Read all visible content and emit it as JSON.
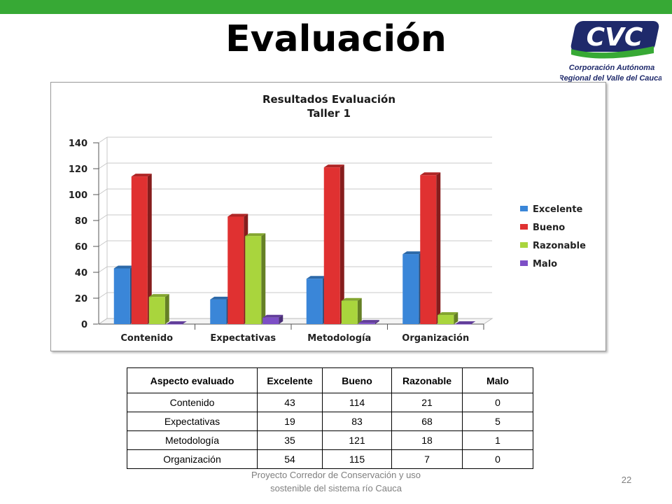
{
  "slide": {
    "title": "Evaluación",
    "footer_line1": "Proyecto Corredor de Conservación y uso",
    "footer_line2": "sostenible del sistema río Cauca",
    "page_number": "22",
    "accent_color": "#37a935"
  },
  "logo": {
    "text": "CVC",
    "subtitle_line1": "Corporación Autónoma",
    "subtitle_line2": "Regional del Valle del Cauca",
    "colors": {
      "navy": "#1f2a6b",
      "green": "#37a935"
    }
  },
  "chart_data": {
    "type": "bar",
    "title": "Resultados Evaluación",
    "subtitle": "Taller 1",
    "categories": [
      "Contenido",
      "Expectativas",
      "Metodología",
      "Organización"
    ],
    "series": [
      {
        "name": "Excelente",
        "values": [
          43,
          19,
          35,
          54
        ],
        "color": "#3a86d8"
      },
      {
        "name": "Bueno",
        "values": [
          114,
          83,
          121,
          115
        ],
        "color": "#e03131"
      },
      {
        "name": "Razonable",
        "values": [
          21,
          68,
          18,
          7
        ],
        "color": "#a9d53d"
      },
      {
        "name": "Malo",
        "values": [
          0,
          5,
          1,
          0
        ],
        "color": "#7d4fc6"
      }
    ],
    "ylim": [
      0,
      140
    ],
    "yticks": [
      0,
      20,
      40,
      60,
      80,
      100,
      120,
      140
    ],
    "grid": true,
    "legend_position": "right",
    "style": "3d-clustered"
  },
  "table": {
    "headers": [
      "Aspecto evaluado",
      "Excelente",
      "Bueno",
      "Razonable",
      "Malo"
    ],
    "rows": [
      [
        "Contenido",
        "43",
        "114",
        "21",
        "0"
      ],
      [
        "Expectativas",
        "19",
        "83",
        "68",
        "5"
      ],
      [
        "Metodología",
        "35",
        "121",
        "18",
        "1"
      ],
      [
        "Organización",
        "54",
        "115",
        "7",
        "0"
      ]
    ]
  }
}
